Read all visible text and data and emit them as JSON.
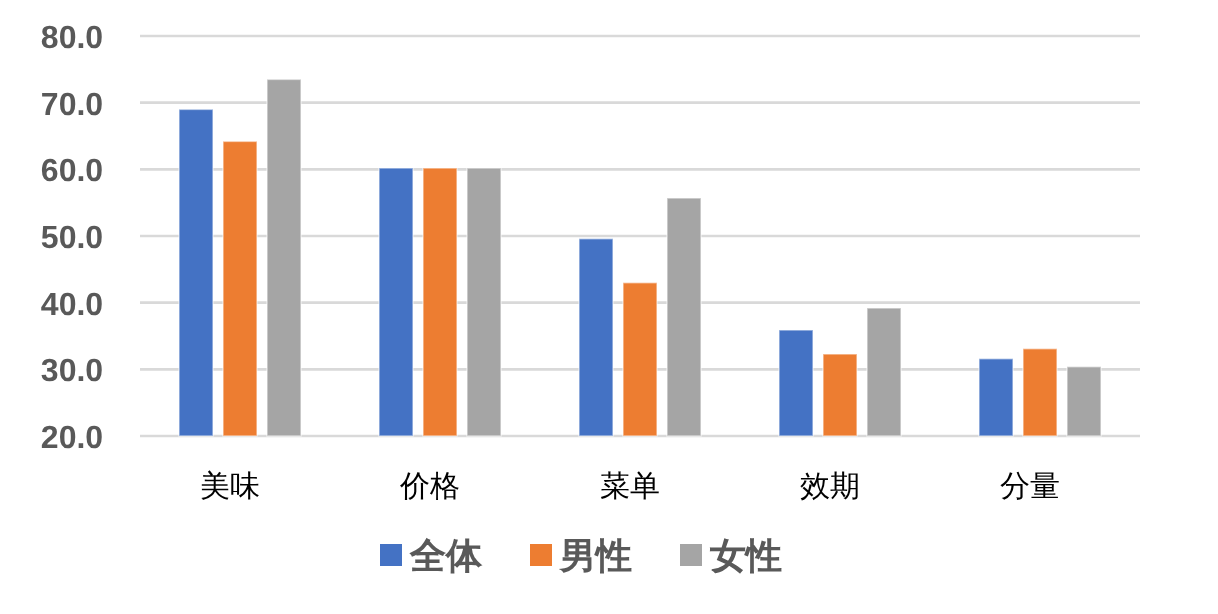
{
  "chart_data": {
    "type": "bar",
    "categories": [
      "美味",
      "价格",
      "菜单",
      "效期",
      "分量"
    ],
    "series": [
      {
        "name": "全体",
        "color": "#4472c4",
        "values": [
          69.0,
          60.2,
          49.6,
          35.9,
          31.6
        ]
      },
      {
        "name": "男性",
        "color": "#ed7d31",
        "values": [
          64.2,
          60.2,
          43.0,
          32.3,
          33.1
        ]
      },
      {
        "name": "女性",
        "color": "#a5a5a5",
        "values": [
          73.5,
          60.2,
          55.7,
          39.2,
          30.4
        ]
      }
    ],
    "ylim": [
      20,
      80
    ],
    "yticks": [
      {
        "value": 20,
        "label": "20.0"
      },
      {
        "value": 30,
        "label": "30.0"
      },
      {
        "value": 40,
        "label": "40.0"
      },
      {
        "value": 50,
        "label": "50.0"
      },
      {
        "value": 60,
        "label": "60.0"
      },
      {
        "value": 70,
        "label": "70.0"
      },
      {
        "value": 80,
        "label": "80.0"
      }
    ],
    "grid": "y",
    "legend": "bottom"
  }
}
